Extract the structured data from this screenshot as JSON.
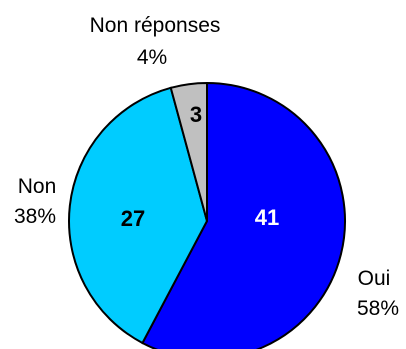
{
  "chart_data": {
    "type": "pie",
    "slices": [
      {
        "name": "Oui",
        "value": 41,
        "percent": "58%",
        "color": "#0000FF",
        "value_label_color": "#FFFFFF"
      },
      {
        "name": "Non",
        "value": 27,
        "percent": "38%",
        "color": "#00CCFF",
        "value_label_color": "#000000"
      },
      {
        "name": "Non réponses",
        "value": 3,
        "percent": "4%",
        "color": "#C0C0C0",
        "value_label_color": "#000000"
      }
    ],
    "start_angle_deg": 0,
    "direction": "clockwise",
    "outline_color": "#000000"
  }
}
